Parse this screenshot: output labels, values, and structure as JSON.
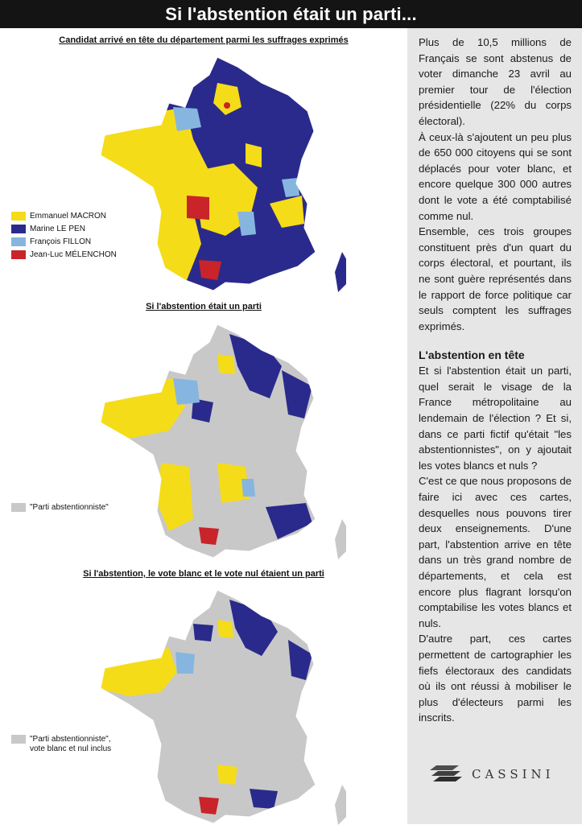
{
  "header": {
    "title": "Si l'abstention était un parti..."
  },
  "colors": {
    "macron": "#f5dc18",
    "lepen": "#2a2a8c",
    "fillon": "#86b6e0",
    "melenchon": "#c8242a",
    "abstention": "#c8c8c8",
    "header_bg": "#141414",
    "panel_bg": "#e6e6e6"
  },
  "maps": [
    {
      "title": "Candidat arrivé en tête du département parmi les suffrages exprimés",
      "legend": [
        {
          "label": "Emmanuel MACRON",
          "color": "#f5dc18"
        },
        {
          "label": "Marine LE PEN",
          "color": "#2a2a8c"
        },
        {
          "label": "François FILLON",
          "color": "#86b6e0"
        },
        {
          "label": "Jean-Luc MÉLENCHON",
          "color": "#c8242a"
        }
      ]
    },
    {
      "title": "Si l'abstention était un parti",
      "legend": [
        {
          "label": "\"Parti abstentionniste\"",
          "color": "#c8c8c8"
        }
      ]
    },
    {
      "title": "Si l'abstention, le vote blanc et le vote nul étaient un parti",
      "legend": [
        {
          "label": "\"Parti abstentionniste\", vote blanc et nul inclus",
          "color": "#c8c8c8"
        }
      ]
    }
  ],
  "article": {
    "p1": "Plus de 10,5 millions de Français se sont abstenus de voter dimanche 23 avril au premier tour de l'élection présidentielle (22% du corps électoral).",
    "p2": "À ceux-là s'ajoutent un peu plus de 650 000 citoyens qui se sont déplacés pour voter blanc, et encore quelque 300 000 autres dont le vote a été comptabilisé comme nul.",
    "p3": "Ensemble, ces trois groupes constituent près d'un quart du corps électoral, et pourtant, ils ne sont guère représentés dans le rapport de force politique car seuls comptent les suffrages exprimés.",
    "heading": "L'abstention en tête",
    "p4": "Et si l'abstention était un parti, quel serait le visage de la France métropolitaine au lendemain de l'élection ? Et si, dans ce parti fictif qu'était \"les abstentionnistes\", on y ajoutait les votes blancs et nuls ?",
    "p5": "C'est ce que nous proposons de faire ici avec ces cartes, desquelles nous pouvons tirer deux enseignements. D'une part, l'abstention arrive en tête dans un très grand nombre de départements, et cela est encore plus flagrant lorsqu'on comptabilise les votes blancs et nuls.",
    "p6": "D'autre part, ces cartes permettent de cartographier les fiefs électoraux des candidats où ils ont réussi à mobiliser le plus d'électeurs parmi les inscrits."
  },
  "logo": {
    "text": "CASSINI"
  }
}
